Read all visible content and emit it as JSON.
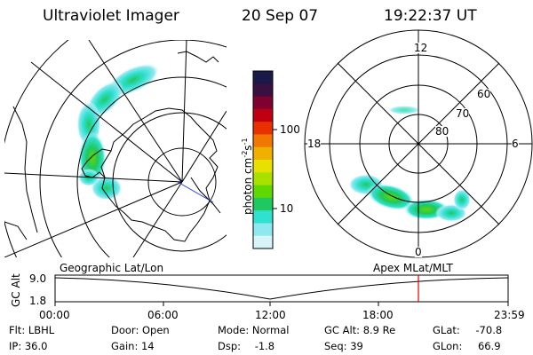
{
  "header": {
    "instrument": "Ultraviolet Imager",
    "date": "20 Sep 07",
    "time": "19:22:37 UT"
  },
  "colorbar": {
    "unit_label": "photon cm",
    "unit_exponent_1": "-2",
    "unit_mid": "s",
    "unit_exponent_2": "-1",
    "ticks": [
      "100",
      "10"
    ],
    "colors": [
      "#1a1a4a",
      "#3a1040",
      "#800030",
      "#c00010",
      "#e83000",
      "#f07800",
      "#f0b000",
      "#e8e000",
      "#a8e000",
      "#60d800",
      "#20c860",
      "#30e0d0",
      "#8fe8f0",
      "#d8f4f8"
    ]
  },
  "right_plot": {
    "mlt_labels": [
      "12",
      "18",
      "6",
      "0"
    ],
    "lat_labels": [
      "60",
      "70",
      "80"
    ]
  },
  "timeline": {
    "left_title": "Geographic Lat/Lon",
    "right_title": "Apex MLat/MLT",
    "y_axis_label": "GC Alt",
    "y_ticks": [
      "9.0",
      "1.8"
    ],
    "x_ticks": [
      "00:00",
      "06:00",
      "12:00",
      "18:00",
      "23:59"
    ],
    "marker_color": "#e00000"
  },
  "footer": {
    "row1": [
      {
        "label": "Flt:",
        "value": "LBHL"
      },
      {
        "label": "Door:",
        "value": "Open"
      },
      {
        "label": "Mode:",
        "value": "Normal"
      },
      {
        "label": "GC Alt:",
        "value": "8.9 Re"
      },
      {
        "label": "GLat:",
        "value": "-70.8"
      }
    ],
    "row2": [
      {
        "label": "IP:",
        "value": "36.0"
      },
      {
        "label": "Gain:",
        "value": "14"
      },
      {
        "label": "Dsp:",
        "value": "-1.8"
      },
      {
        "label": "Seq:",
        "value": "39"
      },
      {
        "label": "GLon:",
        "value": "66.9"
      }
    ]
  }
}
